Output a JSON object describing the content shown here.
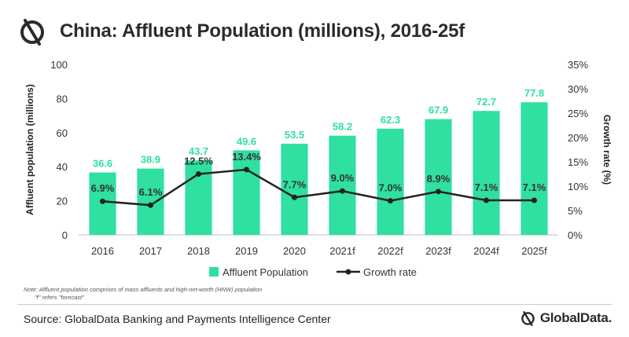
{
  "header": {
    "title": "China: Affluent Population (millions), 2016-25f",
    "logo_icon": "globaldata-logo-icon"
  },
  "chart_data": {
    "type": "bar",
    "categories": [
      "2016",
      "2017",
      "2018",
      "2019",
      "2020",
      "2021f",
      "2022f",
      "2023f",
      "2024f",
      "2025f"
    ],
    "series": [
      {
        "name": "Affluent Population",
        "type": "bar",
        "axis": "left",
        "values": [
          36.6,
          38.9,
          43.7,
          49.6,
          53.5,
          58.2,
          62.3,
          67.9,
          72.7,
          77.8
        ],
        "labels": [
          "36.6",
          "38.9",
          "43.7",
          "49.6",
          "53.5",
          "58.2",
          "62.3",
          "67.9",
          "72.7",
          "77.8"
        ]
      },
      {
        "name": "Growth rate",
        "type": "line",
        "axis": "right",
        "values": [
          6.9,
          6.1,
          12.5,
          13.4,
          7.7,
          9.0,
          7.0,
          8.9,
          7.1,
          7.1
        ],
        "labels": [
          "6.9%",
          "6.1%",
          "12.5%",
          "13.4%",
          "7.7%",
          "9.0%",
          "7.0%",
          "8.9%",
          "7.1%",
          "7.1%"
        ]
      }
    ],
    "y_left": {
      "label": "Affluent population (millions)",
      "ylim": [
        0,
        100
      ],
      "ticks": [
        "0",
        "20",
        "40",
        "60",
        "80",
        "100"
      ]
    },
    "y_right": {
      "label": "Growth rate (%)",
      "ylim": [
        0,
        35
      ],
      "ticks": [
        "0%",
        "5%",
        "10%",
        "15%",
        "20%",
        "25%",
        "30%",
        "35%"
      ]
    },
    "grid": false,
    "legend": "bottom",
    "colors": {
      "bar": "#2fe0a0",
      "line": "#222222",
      "bar_label": "#2fe0a0",
      "line_label": "#333333"
    }
  },
  "footer": {
    "note_line1": "Note: Affluent population comprises of mass affluents and high-net-worth (HNW) population",
    "note_line2": "\"f\" refers \"forecast\"",
    "source": "Source: GlobalData Banking and Payments Intelligence Center",
    "brand": "GlobalData.",
    "brand_icon": "globaldata-logo-icon"
  }
}
